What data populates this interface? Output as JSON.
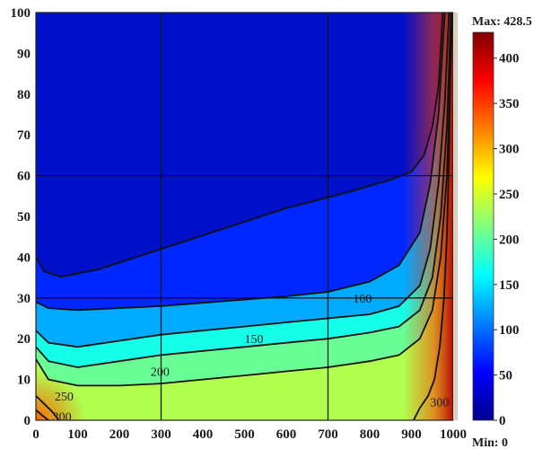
{
  "chart_data": {
    "type": "heatmap",
    "title": "",
    "xlabel": "",
    "ylabel": "",
    "xlim": [
      0,
      1000
    ],
    "ylim": [
      0,
      100
    ],
    "x_ticks": [
      "0",
      "100",
      "200",
      "300",
      "400",
      "500",
      "600",
      "700",
      "800",
      "900",
      "1000"
    ],
    "y_ticks": [
      "0",
      "10",
      "20",
      "30",
      "40",
      "50",
      "60",
      "70",
      "80",
      "90",
      "100"
    ],
    "colormap": "jet",
    "colorbar": {
      "min": 0,
      "max": 428.5,
      "ticks": [
        "0",
        "50",
        "100",
        "150",
        "200",
        "250",
        "300",
        "350",
        "400"
      ],
      "max_label": "Max: 428.5",
      "min_label": "Min: 0"
    },
    "grid_lines": {
      "x": [
        300,
        700
      ],
      "y": [
        30,
        60
      ]
    },
    "contours": [
      {
        "level": 100,
        "label": "100",
        "label_at": [
          760,
          30
        ],
        "points": [
          [
            0,
            40
          ],
          [
            20,
            36.5
          ],
          [
            60,
            35.2
          ],
          [
            150,
            37
          ],
          [
            300,
            42
          ],
          [
            450,
            47
          ],
          [
            600,
            52
          ],
          [
            750,
            56
          ],
          [
            850,
            59
          ],
          [
            900,
            61
          ],
          [
            930,
            65
          ],
          [
            950,
            72
          ],
          [
            965,
            82
          ],
          [
            975,
            100
          ]
        ]
      },
      {
        "level": 100,
        "label": "",
        "label_at": null,
        "points": [
          [
            0,
            29
          ],
          [
            30,
            27.5
          ],
          [
            100,
            27
          ],
          [
            200,
            27.5
          ],
          [
            300,
            28
          ],
          [
            400,
            28.8
          ],
          [
            500,
            29.6
          ],
          [
            600,
            30.4
          ],
          [
            700,
            31.5
          ],
          [
            800,
            34
          ],
          [
            870,
            38
          ],
          [
            920,
            46
          ],
          [
            945,
            58
          ],
          [
            965,
            75
          ],
          [
            980,
            100
          ]
        ]
      },
      {
        "level": 150,
        "label": "150",
        "label_at": [
          500,
          20
        ],
        "points": [
          [
            0,
            22
          ],
          [
            30,
            19
          ],
          [
            100,
            18
          ],
          [
            200,
            19.5
          ],
          [
            300,
            21
          ],
          [
            400,
            22
          ],
          [
            500,
            23
          ],
          [
            600,
            24
          ],
          [
            700,
            25
          ],
          [
            800,
            26
          ],
          [
            870,
            28
          ],
          [
            920,
            33
          ],
          [
            945,
            42
          ],
          [
            965,
            58
          ],
          [
            980,
            78
          ],
          [
            990,
            100
          ]
        ]
      },
      {
        "level": 175,
        "label": "",
        "label_at": null,
        "points": [
          [
            0,
            18
          ],
          [
            30,
            14.5
          ],
          [
            100,
            13
          ],
          [
            200,
            14.5
          ],
          [
            300,
            16
          ],
          [
            400,
            17
          ],
          [
            500,
            18
          ],
          [
            600,
            19
          ],
          [
            700,
            20
          ],
          [
            800,
            21.5
          ],
          [
            870,
            23
          ],
          [
            920,
            27
          ],
          [
            950,
            35
          ],
          [
            970,
            50
          ],
          [
            985,
            72
          ],
          [
            995,
            100
          ]
        ]
      },
      {
        "level": 200,
        "label": "200",
        "label_at": [
          275,
          12
        ],
        "points": [
          [
            0,
            15
          ],
          [
            30,
            10
          ],
          [
            100,
            8.5
          ],
          [
            200,
            8.5
          ],
          [
            300,
            9
          ],
          [
            400,
            10
          ],
          [
            500,
            11
          ],
          [
            600,
            12
          ],
          [
            700,
            13
          ],
          [
            800,
            14.5
          ],
          [
            870,
            16
          ],
          [
            920,
            20
          ],
          [
            950,
            27
          ],
          [
            970,
            40
          ],
          [
            985,
            60
          ],
          [
            995,
            90
          ],
          [
            998,
            100
          ]
        ]
      },
      {
        "level": 250,
        "label": "250",
        "label_at": [
          45,
          6
        ],
        "points": [
          [
            0,
            6
          ],
          [
            20,
            4
          ],
          [
            40,
            2
          ],
          [
            55,
            0
          ]
        ]
      },
      {
        "level": 300,
        "label": "300",
        "label_at": [
          40,
          1
        ],
        "points": [
          [
            0,
            2.5
          ],
          [
            15,
            1.2
          ],
          [
            30,
            0
          ]
        ]
      },
      {
        "level": 300,
        "label": "300",
        "label_at": [
          945,
          4.5
        ],
        "points": [
          [
            905,
            0
          ],
          [
            920,
            3
          ],
          [
            940,
            6
          ],
          [
            955,
            10
          ],
          [
            968,
            18
          ],
          [
            978,
            30
          ],
          [
            985,
            45
          ],
          [
            990,
            65
          ],
          [
            993,
            85
          ],
          [
            995,
            100
          ]
        ]
      }
    ]
  }
}
